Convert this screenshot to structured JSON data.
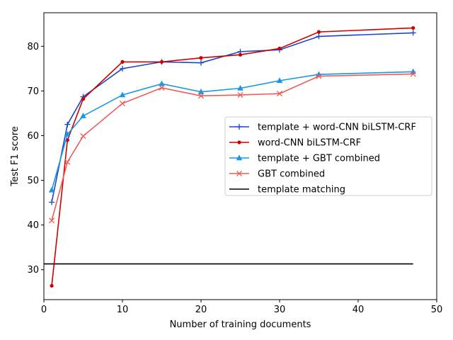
{
  "chart_data": {
    "type": "line",
    "title": "",
    "xlabel": "Number of training documents",
    "ylabel": "Test F1 score",
    "xlim": [
      0,
      50
    ],
    "ylim": [
      23.3,
      87.5
    ],
    "xticks": [
      0,
      10,
      20,
      30,
      40,
      50
    ],
    "yticks": [
      30,
      40,
      50,
      60,
      70,
      80
    ],
    "grid": false,
    "legend_position": "center-right",
    "series": [
      {
        "name": "template + word-CNN biLSTM-CRF",
        "color": "#1a46c8",
        "marker": "plus",
        "x": [
          1,
          3,
          5,
          10,
          15,
          20,
          25,
          30,
          35,
          47
        ],
        "y": [
          45.1,
          62.5,
          68.7,
          75.0,
          76.5,
          76.3,
          78.8,
          79.2,
          82.2,
          83.0
        ]
      },
      {
        "name": "word-CNN biLSTM-CRF",
        "color": "#cc0000",
        "marker": "dot",
        "x": [
          1,
          3,
          5,
          10,
          15,
          20,
          25,
          30,
          35,
          47
        ],
        "y": [
          26.4,
          59.0,
          68.2,
          76.5,
          76.5,
          77.4,
          78.1,
          79.5,
          83.2,
          84.1
        ]
      },
      {
        "name": "template + GBT combined",
        "color": "#1a96e6",
        "marker": "triangle",
        "x": [
          1,
          3,
          5,
          10,
          15,
          20,
          25,
          30,
          35,
          47
        ],
        "y": [
          47.8,
          60.3,
          64.4,
          69.1,
          71.6,
          69.8,
          70.6,
          72.3,
          73.7,
          74.3
        ]
      },
      {
        "name": "GBT combined",
        "color": "#f05a55",
        "marker": "x",
        "x": [
          1,
          3,
          5,
          10,
          15,
          20,
          25,
          30,
          35,
          47
        ],
        "y": [
          41.0,
          54.1,
          59.9,
          67.2,
          70.7,
          68.9,
          69.1,
          69.4,
          73.3,
          73.8
        ]
      },
      {
        "name": "template matching",
        "color": "#000000",
        "marker": "none",
        "x": [
          0,
          47
        ],
        "y": [
          31.3,
          31.3
        ]
      }
    ]
  }
}
